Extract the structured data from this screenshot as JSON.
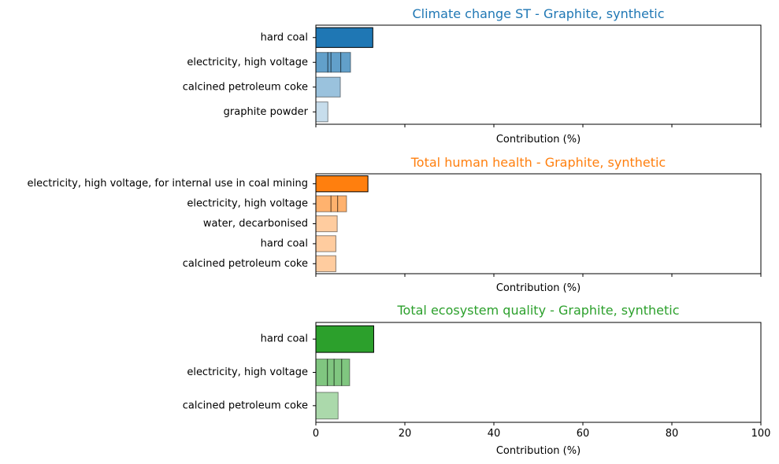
{
  "chart_data": [
    {
      "type": "bar",
      "orientation": "horizontal",
      "title": "Climate change ST - Graphite, synthetic",
      "title_color": "#1f77b4",
      "xlabel": "Contribution (%)",
      "xlim": [
        0,
        100
      ],
      "xticks": [
        0,
        20,
        40,
        60,
        80,
        100
      ],
      "show_tick_labels": false,
      "color": "#1f77b4",
      "categories": [
        "hard coal",
        "electricity, high voltage",
        "calcined petroleum coke",
        "graphite powder"
      ],
      "segments": [
        [
          12.8
        ],
        [
          2.7,
          0.7,
          2.2,
          2.2
        ],
        [
          5.5
        ],
        [
          2.7
        ]
      ],
      "alphas": [
        1.0,
        0.7,
        0.45,
        0.25
      ]
    },
    {
      "type": "bar",
      "orientation": "horizontal",
      "title": "Total human health - Graphite, synthetic",
      "title_color": "#ff7f0e",
      "xlabel": "Contribution (%)",
      "xlim": [
        0,
        100
      ],
      "xticks": [
        0,
        20,
        40,
        60,
        80,
        100
      ],
      "show_tick_labels": false,
      "color": "#ff7f0e",
      "categories": [
        "electricity, high voltage, for internal use in coal mining",
        "electricity, high voltage",
        "water, decarbonised",
        "hard coal",
        "calcined petroleum coke"
      ],
      "segments": [
        [
          11.7
        ],
        [
          3.4,
          1.5,
          2.0
        ],
        [
          4.8
        ],
        [
          4.5
        ],
        [
          4.5
        ]
      ],
      "alphas": [
        1.0,
        0.6,
        0.4,
        0.4,
        0.4
      ]
    },
    {
      "type": "bar",
      "orientation": "horizontal",
      "title": "Total ecosystem quality - Graphite, synthetic",
      "title_color": "#2ca02c",
      "xlabel": "Contribution (%)",
      "xlim": [
        0,
        100
      ],
      "xticks": [
        0,
        20,
        40,
        60,
        80,
        100
      ],
      "show_tick_labels": true,
      "color": "#2ca02c",
      "categories": [
        "hard coal",
        "electricity, high voltage",
        "calcined petroleum coke"
      ],
      "segments": [
        [
          13.0
        ],
        [
          2.6,
          1.5,
          1.7,
          1.8
        ],
        [
          5.0
        ]
      ],
      "alphas": [
        1.0,
        0.6,
        0.4
      ]
    }
  ]
}
